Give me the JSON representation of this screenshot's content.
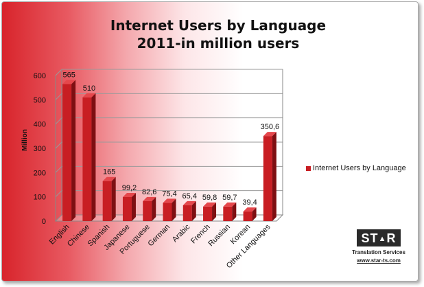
{
  "chart_data": {
    "type": "bar",
    "title": "Internet Users by Language",
    "subtitle": "2011-in million users",
    "ylabel": "Million",
    "xlabel": "",
    "ylim": [
      0,
      600
    ],
    "yticks": [
      0,
      100,
      200,
      300,
      400,
      500,
      600
    ],
    "categories": [
      "English",
      "Chinese",
      "Spanish",
      "Japanese",
      "Portuguese",
      "German",
      "Arabic",
      "French",
      "Russian",
      "Korean",
      "Other Languages"
    ],
    "series": [
      {
        "name": "Internet Users by Language",
        "values": [
          565,
          510,
          165,
          99.2,
          82.6,
          75.4,
          65.4,
          59.8,
          59.7,
          39.4,
          350.6
        ],
        "labels": [
          "565",
          "510",
          "165",
          "99,2",
          "82,6",
          "75,4",
          "65,4",
          "59,8",
          "59,7",
          "39,4",
          "350,6"
        ],
        "color": "#c81e23"
      }
    ],
    "legend_position": "right",
    "grid": true,
    "style": "3d-bars"
  },
  "logo": {
    "text_left": "ST",
    "text_right": "R",
    "tagline": "Translation Services",
    "url": "www.star-ts.com"
  },
  "colors": {
    "bar": "#c81e23",
    "bar_dark": "#7e0f12",
    "bar_light": "#e5474c",
    "background_accent": "#d8242b"
  }
}
